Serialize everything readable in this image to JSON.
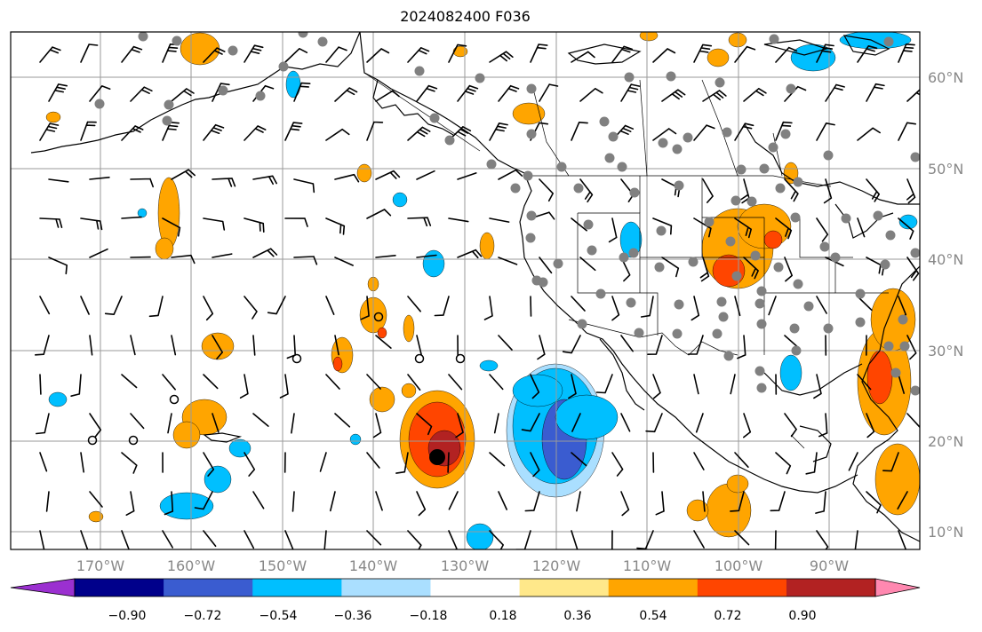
{
  "title": "2024082400 F036",
  "map": {
    "lat_labels": [
      "60°N",
      "50°N",
      "40°N",
      "30°N",
      "20°N",
      "10°N"
    ],
    "lon_labels": [
      "170°W",
      "160°W",
      "150°W",
      "140°W",
      "130°W",
      "120°W",
      "110°W",
      "100°W",
      "90°W"
    ]
  },
  "colorbar": {
    "ticks": [
      "−0.90",
      "−0.72",
      "−0.54",
      "−0.36",
      "−0.18",
      "0.18",
      "0.36",
      "0.54",
      "0.72",
      "0.90"
    ],
    "colors": [
      "#9b30d0",
      "#00008b",
      "#3a5cd0",
      "#00bfff",
      "#aadfff",
      "#ffffff",
      "#ffe88a",
      "#ffa500",
      "#ff4500",
      "#b22222",
      "#ff88b0"
    ]
  },
  "shading_colors": {
    "neg_strong": "#3a5cd0",
    "neg": "#00bfff",
    "neg_weak": "#aadfff",
    "pos_weak": "#ffe88a",
    "pos": "#ffa500",
    "pos_strong": "#ff4500",
    "pos_max": "#b22222"
  },
  "markers": {
    "station_dot_color": "#808080",
    "storm_center_color": "#000000"
  }
}
